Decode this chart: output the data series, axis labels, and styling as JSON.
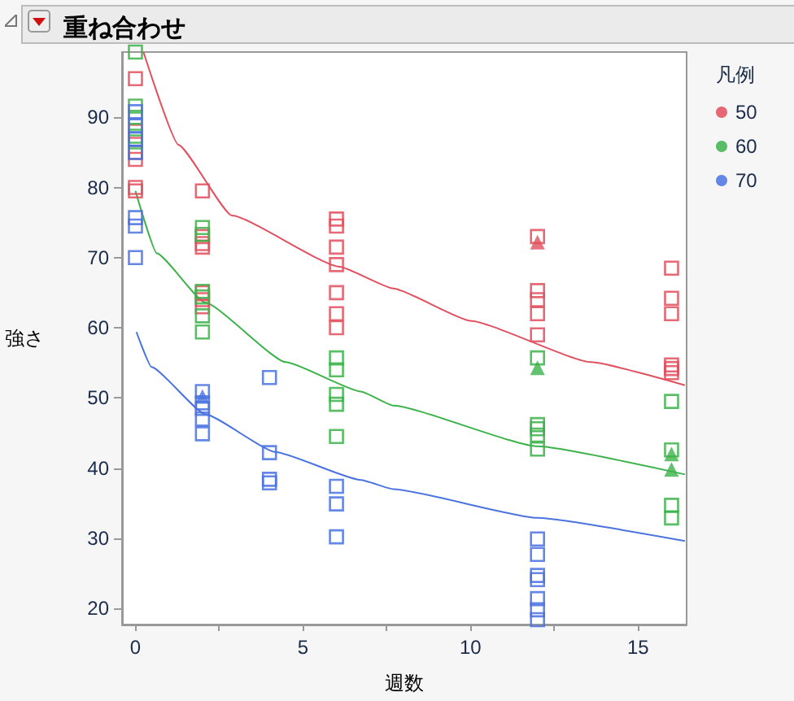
{
  "chart_data": {
    "type": "scatter",
    "title": "重ね合わせ",
    "xlabel": "週数",
    "ylabel": "強さ",
    "legend_title": "凡例",
    "legend": "top right",
    "grid": false,
    "xlim": [
      -0.4,
      16.45
    ],
    "xticks": [
      0,
      {
        "value": 2.5,
        "label": null
      },
      5,
      {
        "value": 7.5,
        "label": null
      },
      10,
      {
        "value": 12.5,
        "label": null
      },
      15
    ],
    "ylim": [
      17.7,
      99.3
    ],
    "yticks": [
      20,
      30,
      40,
      50,
      60,
      70,
      80,
      90
    ],
    "series": [
      {
        "name": "50",
        "color": "#e0505e",
        "marker": "square",
        "x": [
          0,
          0,
          0,
          0,
          0,
          0,
          2,
          2,
          2,
          2,
          2,
          2,
          2,
          6,
          6,
          6,
          6,
          6,
          6,
          6,
          12,
          12,
          12,
          12,
          12,
          16,
          16,
          16,
          16,
          16,
          16
        ],
        "values": [
          95.5,
          88,
          85,
          84,
          80,
          79.5,
          79.5,
          73,
          72,
          71.5,
          65,
          64,
          63,
          75.5,
          74.5,
          71.5,
          69,
          65,
          62,
          60,
          73,
          65.3,
          64,
          62,
          59,
          68.5,
          64.2,
          62,
          54.7,
          54.2,
          53.6
        ]
      },
      {
        "name": "60",
        "color": "#3cb34a",
        "marker": "square",
        "x": [
          0,
          0,
          0,
          0,
          0,
          2,
          2,
          2,
          2,
          2,
          2,
          6,
          6,
          6,
          6,
          6,
          12,
          12,
          12,
          12,
          12,
          16,
          16,
          16,
          16
        ],
        "values": [
          99.3,
          91.6,
          90,
          87.3,
          86.5,
          74.3,
          73.3,
          65.2,
          64.4,
          61.7,
          59.4,
          55.7,
          54,
          50.5,
          49.1,
          44.5,
          55.7,
          46.2,
          45.6,
          44.7,
          42.7,
          49.5,
          42.6,
          34.7,
          32.9
        ]
      },
      {
        "name": "70",
        "color": "#4a72e0",
        "marker": "square",
        "x": [
          0,
          0,
          0,
          0,
          0,
          0,
          0,
          2,
          2,
          2,
          2,
          2,
          4,
          4,
          4,
          4,
          6,
          6,
          6,
          12,
          12,
          12,
          12,
          12,
          12,
          12
        ],
        "values": [
          90.8,
          88.8,
          86.9,
          85,
          75.7,
          74.5,
          70,
          50.9,
          49.3,
          48.5,
          47,
          44.9,
          52.9,
          42.2,
          38.4,
          37.9,
          37.4,
          34.9,
          30.2,
          29.9,
          27.7,
          24.7,
          24.1,
          21.4,
          19.8,
          18.4
        ]
      },
      {
        "color": "#e0505e",
        "marker": "triangle",
        "x": [
          12
        ],
        "values": [
          72.2
        ]
      },
      {
        "color": "#3cb34a",
        "marker": "triangle",
        "x": [
          12,
          16,
          16
        ],
        "values": [
          54.3,
          42,
          39.8
        ]
      },
      {
        "color": "#4a72e0",
        "marker": "triangle",
        "x": [
          2
        ],
        "values": [
          50.2
        ]
      },
      {
        "type": "line",
        "color": "#e0505e",
        "marker": "none",
        "x": [
          0.24,
          1.28,
          2.88,
          6.09,
          7.7,
          10,
          13.6,
          16.4
        ],
        "values": [
          99.3,
          86.1,
          76,
          68.7,
          65.6,
          61,
          55.1,
          51.8
        ]
      },
      {
        "type": "line",
        "color": "#3cb34a",
        "marker": "none",
        "x": [
          0,
          0.64,
          2.08,
          4.49,
          6.73,
          7.7,
          12,
          16.4
        ],
        "values": [
          79.5,
          70.6,
          63.6,
          55.1,
          50.9,
          48.9,
          43.1,
          39.1
        ]
      },
      {
        "type": "line",
        "color": "#4a72e0",
        "marker": "none",
        "x": [
          0.03,
          0.48,
          2.08,
          4.17,
          6.73,
          7.7,
          12,
          16.4
        ],
        "values": [
          59.4,
          54.4,
          47.7,
          42.3,
          38.3,
          37,
          32.9,
          29.6
        ]
      }
    ]
  }
}
